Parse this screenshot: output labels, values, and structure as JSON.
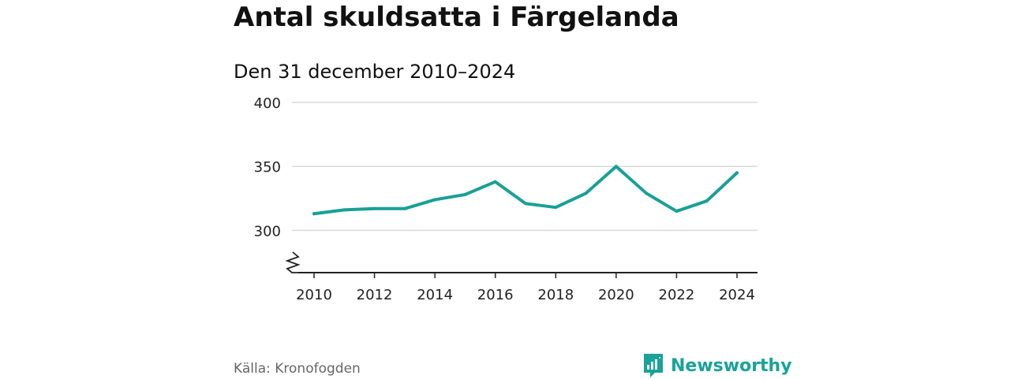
{
  "title": "Antal skuldsatta i Färgelanda",
  "subtitle": "Den 31 december 2010–2024",
  "source": "Källa: Kronofogden",
  "brand": "Newsworthy",
  "colors": {
    "line": "#18a096",
    "brand": "#17a398",
    "grid": "#d9d9d9",
    "axis": "#222222"
  },
  "chart_data": {
    "type": "line",
    "title": "Antal skuldsatta i Färgelanda",
    "subtitle": "Den 31 december 2010–2024",
    "xlabel": "",
    "ylabel": "",
    "x": [
      2010,
      2011,
      2012,
      2013,
      2014,
      2015,
      2016,
      2017,
      2018,
      2019,
      2020,
      2021,
      2022,
      2023,
      2024
    ],
    "series": [
      {
        "name": "Antal skuldsatta",
        "values": [
          313,
          316,
          317,
          317,
          324,
          328,
          338,
          321,
          318,
          329,
          350,
          329,
          315,
          323,
          345
        ]
      }
    ],
    "ylim": [
      267,
      400
    ],
    "yticks": [
      300,
      350,
      400
    ],
    "ytick_labels": [
      "300",
      "350",
      "400"
    ],
    "xticks": [
      2010,
      2012,
      2014,
      2016,
      2018,
      2020,
      2022,
      2024
    ],
    "xtick_labels": [
      "2010",
      "2012",
      "2014",
      "2016",
      "2018",
      "2020",
      "2022",
      "2024"
    ],
    "axis_break": true,
    "grid": true,
    "legend": "none"
  }
}
